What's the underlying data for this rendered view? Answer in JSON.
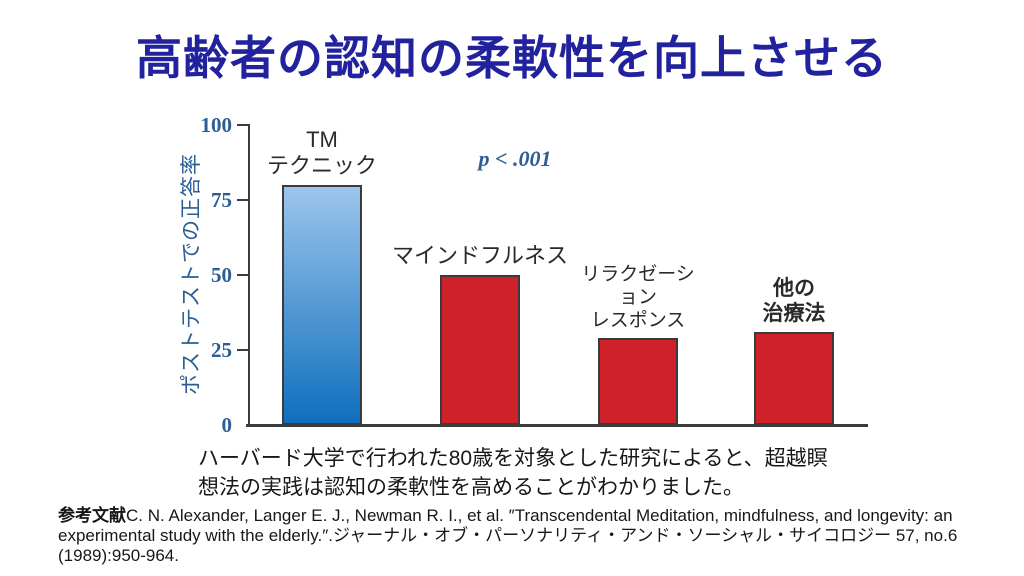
{
  "slide": {
    "title": "高齢者の認知の柔軟性を向上させる",
    "caption": "ハーバード大学で行われた80歳を対象とした研究によると、超越瞑\n想法の実践は認知の柔軟性を高めることがわかりました。",
    "reference_label": "参考文献",
    "reference_text": "C. N. Alexander, Langer E. J., Newman R. I., et al. ″Transcendental Meditation, mindfulness, and longevity: an experimental study with the elderly.″.ジャーナル・オブ・パーソナリティ・アンド・ソーシャル・サイコロジー 57, no.6 (1989):950-964."
  },
  "chart_data": {
    "type": "bar",
    "title": "",
    "xlabel": "",
    "ylabel": "ポストテストでの正答率",
    "annotation": "p < .001",
    "ylim": [
      0,
      100
    ],
    "yticks": [
      0,
      25,
      50,
      75,
      100
    ],
    "grid": false,
    "legend": "none",
    "categories": [
      "TM\nテクニック",
      "マインドフルネス",
      "リラクゼーシ\nョン\nレスポンス",
      "他の\n治療法"
    ],
    "values": [
      80,
      50,
      29,
      31
    ],
    "category_slugs": [
      "tm-technique",
      "mindfulness",
      "relaxation-response",
      "other-treatments"
    ],
    "label_bold": [
      false,
      false,
      false,
      true
    ],
    "colors": {
      "tm_bar_gradient_top": "#9CC5EC",
      "tm_bar_gradient_bottom": "#0F6FBD",
      "control_bar": "#CE2129",
      "bar_border": "#3b3b3b",
      "axis_text": "#2B5E94",
      "title_text": "#22229E"
    }
  }
}
